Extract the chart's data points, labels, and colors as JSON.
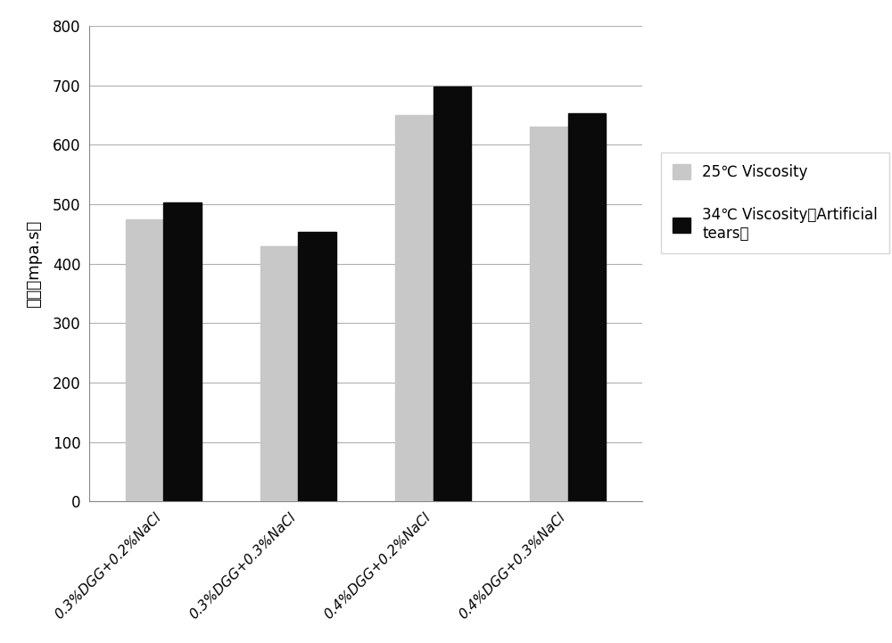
{
  "categories": [
    "0.3%DGG+0.2%NaCl",
    "0.3%DGG+0.3%NaCl",
    "0.4%DGG+0.2%NaCl",
    "0.4%DGG+0.3%NaCl"
  ],
  "series": [
    {
      "name": "25℃ Viscosity",
      "values": [
        475,
        430,
        650,
        630
      ],
      "color": "#c8c8c8"
    },
    {
      "name": "34℃ Viscosity（Artificial\ntears）",
      "values": [
        503,
        453,
        698,
        653
      ],
      "color": "#0a0a0a"
    }
  ],
  "ylabel": "粘度（mpa.s）",
  "ylim": [
    0,
    800
  ],
  "yticks": [
    0,
    100,
    200,
    300,
    400,
    500,
    600,
    700,
    800
  ],
  "bar_width": 0.28,
  "legend_labels": [
    "25℃ Viscosity",
    "34℃ Viscosity（Artificial\ntears）"
  ],
  "legend_colors": [
    "#c8c8c8",
    "#0a0a0a"
  ],
  "background_color": "#ffffff",
  "grid_color": "#b0b0b0",
  "figsize": [
    10.0,
    7.21
  ],
  "dpi": 100
}
